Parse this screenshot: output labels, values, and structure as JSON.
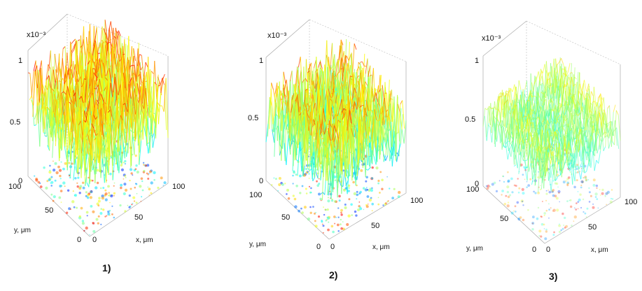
{
  "figure": {
    "panels": [
      {
        "label": "1)"
      },
      {
        "label": "2)"
      },
      {
        "label": "3)"
      }
    ]
  },
  "chart_data": [
    {
      "type": "surface3d",
      "zlabel_multiplier": "x10⁻³",
      "z_ticks": [
        "0",
        "0.5",
        "1"
      ],
      "x_ticks": [
        "0",
        "50",
        "100"
      ],
      "y_ticks": [
        "0",
        "50",
        "100"
      ],
      "xlabel": "x, μm",
      "ylabel": "y, μm",
      "xlim": [
        0,
        100
      ],
      "ylim": [
        0,
        100
      ],
      "zlim": [
        0,
        1
      ],
      "z_mean_estimate": 0.6,
      "z_range_estimate": [
        0.0,
        1.0
      ],
      "colormap": "jet"
    },
    {
      "type": "surface3d",
      "zlabel_multiplier": "x10⁻³",
      "z_ticks": [
        "0",
        "0.5",
        "1"
      ],
      "x_ticks": [
        "0",
        "50",
        "100"
      ],
      "y_ticks": [
        "0",
        "50",
        "100"
      ],
      "xlabel": "x, μm",
      "ylabel": "y, μm",
      "xlim": [
        0,
        100
      ],
      "ylim": [
        0,
        100
      ],
      "zlim": [
        0,
        1
      ],
      "z_mean_estimate": 0.55,
      "z_range_estimate": [
        0.0,
        1.0
      ],
      "colormap": "jet"
    },
    {
      "type": "surface3d",
      "zlabel_multiplier": "x10⁻³",
      "z_ticks": [
        "0",
        "0.5",
        "1"
      ],
      "x_ticks": [
        "0",
        "50",
        "100"
      ],
      "y_ticks": [
        "0",
        "50",
        "100"
      ],
      "xlabel": "x, μm",
      "ylabel": "y, μm",
      "xlim": [
        0,
        100
      ],
      "ylim": [
        0,
        100
      ],
      "zlim": [
        0,
        1
      ],
      "z_mean_estimate": 0.5,
      "z_range_estimate": [
        0.2,
        0.9
      ],
      "colormap": "jet"
    }
  ]
}
